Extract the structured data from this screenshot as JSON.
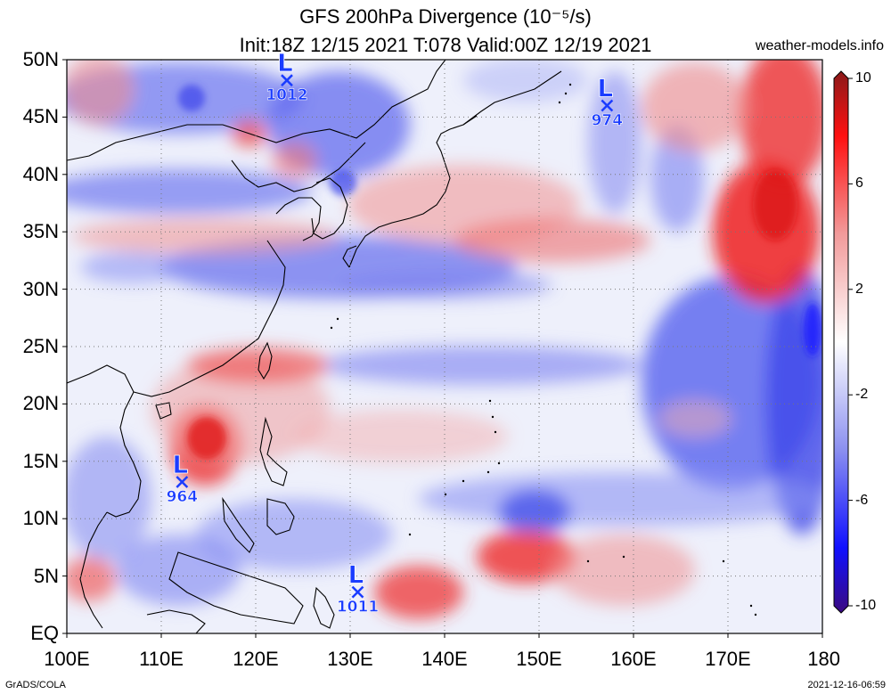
{
  "header": {
    "title_line1": "GFS 200hPa Divergence (10⁻⁵/s)",
    "title_line2": "Init:18Z 12/15 2021 T:078 Valid:00Z 12/19 2021",
    "site": "weather-models.info"
  },
  "footer": {
    "left": "GrADS/COLA",
    "right": "2021-12-16-06:59"
  },
  "axes": {
    "lat_labels": [
      "50N",
      "45N",
      "40N",
      "35N",
      "30N",
      "25N",
      "20N",
      "15N",
      "10N",
      "5N",
      "EQ"
    ],
    "lat_values": [
      50,
      45,
      40,
      35,
      30,
      25,
      20,
      15,
      10,
      5,
      0
    ],
    "lon_labels": [
      "100E",
      "110E",
      "120E",
      "130E",
      "140E",
      "150E",
      "160E",
      "170E",
      "180"
    ],
    "lon_values": [
      100,
      110,
      120,
      130,
      140,
      150,
      160,
      170,
      180
    ],
    "lon_range": [
      100,
      180
    ],
    "lat_range": [
      0,
      50
    ],
    "grid": "dotted"
  },
  "colorbar": {
    "labels": [
      "10",
      "6",
      "2",
      "-2",
      "-6",
      "-10"
    ],
    "values": [
      10,
      6,
      2,
      -2,
      -6,
      -10
    ],
    "colors": [
      "#4b0082",
      "#0000ff",
      "#ffffff",
      "#ff0000",
      "#8b0000"
    ]
  },
  "lows": [
    {
      "symbol": "L",
      "pressure": "1012",
      "lon": 123.3,
      "lat": 48.2
    },
    {
      "symbol": "L",
      "pressure": "974",
      "lon": 157.2,
      "lat": 46.0
    },
    {
      "symbol": "L",
      "pressure": "964",
      "lon": 112.2,
      "lat": 13.2
    },
    {
      "symbol": "L",
      "pressure": "1011",
      "lon": 130.8,
      "lat": 3.6
    }
  ],
  "colors": {
    "positive": "#ff0000",
    "negative": "#0000ff",
    "low_marker": "#1a3cff"
  }
}
